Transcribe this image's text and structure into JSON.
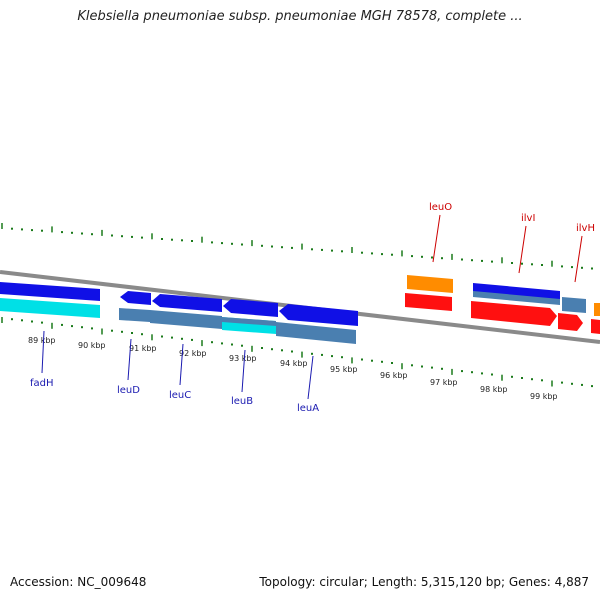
{
  "header": {
    "title": "Klebsiella pneumoniae subsp. pneumoniae MGH 78578, complete ..."
  },
  "footer": {
    "accession": "Accession: NC_009648",
    "stats": "Topology: circular; Length: 5,315,120 bp; Genes: 4,887"
  },
  "colors": {
    "backbone": "#8a8a8a",
    "tick": "#1a7a1a",
    "forward_cds": "#1010e6",
    "reverse_cds": "#4a7fb0",
    "rna": "#00e0e6",
    "highlight_cds": "#ff1010",
    "highlight_rna": "#ff8c00",
    "label_blue": "#1a1ab0",
    "label_red": "#cc0000"
  },
  "scale_labels": [
    "89 kbp",
    "90 kbp",
    "91 kbp",
    "92 kbp",
    "93 kbp",
    "94 kbp",
    "95 kbp",
    "96 kbp",
    "97 kbp",
    "98 kbp",
    "99 kbp"
  ],
  "gene_labels": [
    {
      "name": "fadH",
      "color": "label_blue"
    },
    {
      "name": "leuD",
      "color": "label_blue"
    },
    {
      "name": "leuC",
      "color": "label_blue"
    },
    {
      "name": "leuB",
      "color": "label_blue"
    },
    {
      "name": "leuA",
      "color": "label_blue"
    },
    {
      "name": "leuO",
      "color": "label_red"
    },
    {
      "name": "ilvI",
      "color": "label_red"
    },
    {
      "name": "ilvH",
      "color": "label_red"
    }
  ]
}
